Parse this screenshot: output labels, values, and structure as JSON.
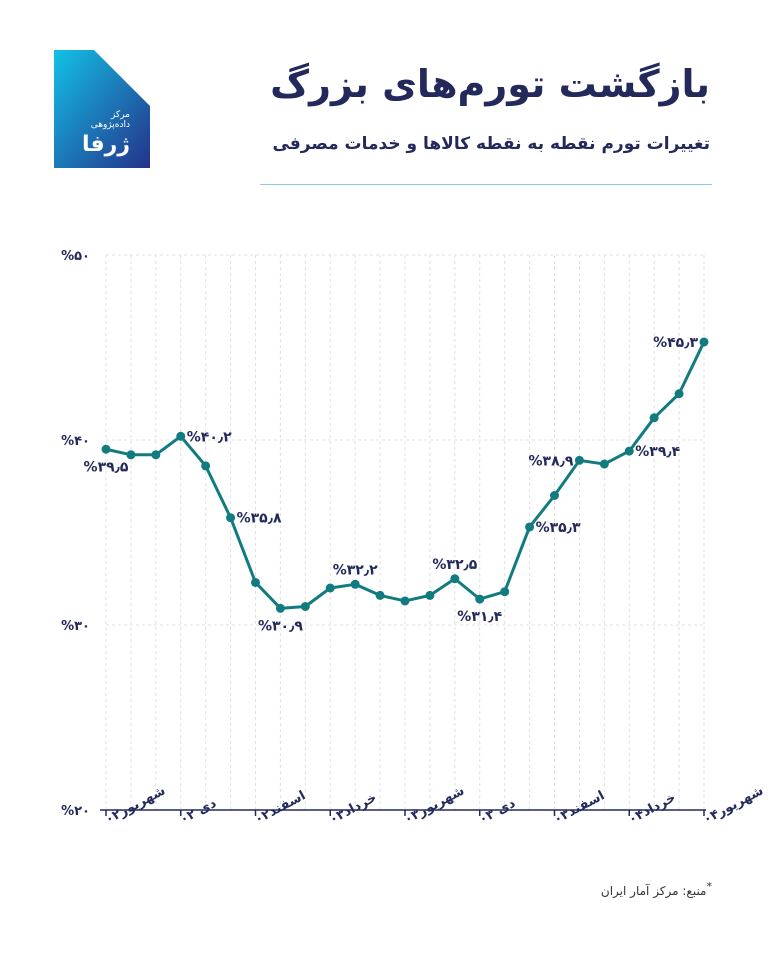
{
  "header": {
    "title": "بازگشت تورم‌های بزرگ",
    "subtitle": "تغییرات تورم نقطه به نقطه کالاها و خدمات مصرفی"
  },
  "logo": {
    "subtitle": "مرکز داده‌پژوهی",
    "name": "ژرفا"
  },
  "footer": {
    "source_mark": "*",
    "source_text": "منبع: مرکز آمار ایران"
  },
  "colors": {
    "line": "#127b7f",
    "grid": "#e0e0e0",
    "axis": "#232a5b",
    "logo_top": "#13c1e5",
    "logo_bottom": "#24328a"
  },
  "chart_data": {
    "type": "line",
    "ylim": [
      20,
      50
    ],
    "yticks": [
      "%۲۰",
      "%۳۰",
      "%۴۰",
      "%۵۰"
    ],
    "ytick_values": [
      20,
      30,
      40,
      50
    ],
    "x_categories": [
      "شهریور۰۲",
      "",
      "",
      "دی۰۲",
      "",
      "",
      "اسفند۰۲",
      "",
      "",
      "خرداد۰۳",
      "",
      "",
      "شهریور۰۳",
      "",
      "",
      "دی ۰۳",
      "",
      "",
      "اسفند۰۳",
      "",
      "",
      "خرداد۰۴",
      "",
      "",
      "شهریور۰۴"
    ],
    "x_tick_labels": [
      "شهریور۰۲",
      "دی ۰۲",
      "اسفند۰۲",
      "خرداد۰۳",
      "شهریور۰۳",
      "دی ۰۳",
      "اسفند۰۳",
      "خرداد۰۴",
      "شهریور۰۴"
    ],
    "x_tick_indices": [
      0,
      3,
      6,
      9,
      12,
      15,
      18,
      21,
      24
    ],
    "values": [
      39.5,
      39.2,
      39.2,
      40.2,
      38.6,
      35.8,
      32.3,
      30.9,
      31.0,
      32.0,
      32.2,
      31.6,
      31.3,
      31.6,
      32.5,
      31.4,
      31.8,
      35.3,
      37.0,
      38.9,
      38.7,
      39.4,
      41.2,
      42.5,
      45.3
    ],
    "data_labels": [
      {
        "index": 0,
        "text": "%۳۹٫۵",
        "pos": "below"
      },
      {
        "index": 3,
        "text": "%۴۰٫۲",
        "pos": "right"
      },
      {
        "index": 5,
        "text": "%۳۵٫۸",
        "pos": "right"
      },
      {
        "index": 7,
        "text": "%۳۰٫۹",
        "pos": "below"
      },
      {
        "index": 10,
        "text": "%۳۲٫۲",
        "pos": "above"
      },
      {
        "index": 14,
        "text": "%۳۲٫۵",
        "pos": "above"
      },
      {
        "index": 15,
        "text": "%۳۱٫۴",
        "pos": "below"
      },
      {
        "index": 17,
        "text": "%۳۵٫۳",
        "pos": "right"
      },
      {
        "index": 19,
        "text": "%۳۸٫۹",
        "pos": "left"
      },
      {
        "index": 21,
        "text": "%۳۹٫۴",
        "pos": "right"
      },
      {
        "index": 24,
        "text": "%۴۵٫۳",
        "pos": "left"
      }
    ],
    "grid": true
  }
}
